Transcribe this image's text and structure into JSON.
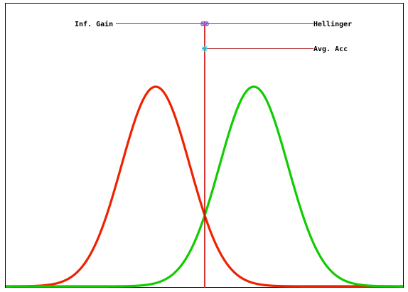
{
  "labels": {
    "inf_gain": "Inf. Gain",
    "hellinger": "Hellinger",
    "avg_acc": "Avg. Acc"
  },
  "colors": {
    "frame": "#000000",
    "red_curve": "#ee2200",
    "green_curve": "#11cc00",
    "split_line": "#cc0000",
    "annotation_line": "#aa2222",
    "marker_cross": "#2bb3c8",
    "marker_double": "#8a55cc"
  }
}
